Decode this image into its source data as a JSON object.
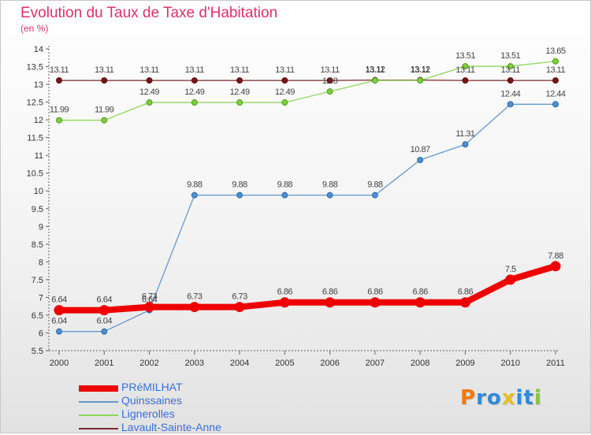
{
  "header": {
    "title": "Evolution du Taux de Taxe d'Habitation",
    "subtitle": "(en %)"
  },
  "logo": {
    "letters": [
      {
        "char": "P",
        "color": "#f07a10"
      },
      {
        "char": "r",
        "color": "#2e8bd8"
      },
      {
        "char": "o",
        "color": "#2e8bd8"
      },
      {
        "char": "x",
        "color": "#e8c020"
      },
      {
        "char": "i",
        "color": "#2e8bd8"
      },
      {
        "char": "t",
        "color": "#2e8bd8"
      },
      {
        "char": "i",
        "color": "#84c83a"
      }
    ]
  },
  "chart_data": {
    "type": "line",
    "title": "Evolution du Taux de Taxe d'Habitation",
    "subtitle": "(en %)",
    "x": [
      2000,
      2001,
      2002,
      2003,
      2004,
      2005,
      2006,
      2007,
      2008,
      2009,
      2010,
      2011
    ],
    "ylim": [
      5.5,
      14
    ],
    "yticks": [
      5.5,
      6,
      6.5,
      7,
      7.5,
      8,
      8.5,
      9,
      9.5,
      10,
      10.5,
      11,
      11.5,
      12,
      12.5,
      13,
      13.5,
      14
    ],
    "grid": false,
    "legend_position": "bottom-left",
    "series": [
      {
        "name": "Lavault-Sainte-Anne",
        "color": "#7a2a2a",
        "values": [
          13.11,
          13.11,
          13.11,
          13.11,
          13.11,
          13.11,
          13.11,
          13.12,
          13.12,
          13.11,
          13.11,
          13.11
        ]
      },
      {
        "name": "Lignerolles",
        "color": "#8ed85a",
        "values": [
          11.99,
          11.99,
          12.49,
          12.49,
          12.49,
          12.49,
          12.8,
          13.11,
          13.11,
          13.51,
          13.51,
          13.65
        ]
      },
      {
        "name": "Quinssaines",
        "color": "#6699cc",
        "values": [
          6.04,
          6.04,
          6.64,
          9.88,
          9.88,
          9.88,
          9.88,
          9.88,
          10.87,
          11.31,
          12.44,
          12.44
        ]
      },
      {
        "name": "PRéMILHAT",
        "color": "#ee0000",
        "values": [
          6.64,
          6.64,
          6.73,
          6.73,
          6.73,
          6.86,
          6.86,
          6.86,
          6.86,
          6.86,
          7.5,
          7.88
        ]
      }
    ],
    "legend_order": [
      "PRéMILHAT",
      "Quinssaines",
      "Lignerolles",
      "Lavault-Sainte-Anne"
    ]
  }
}
